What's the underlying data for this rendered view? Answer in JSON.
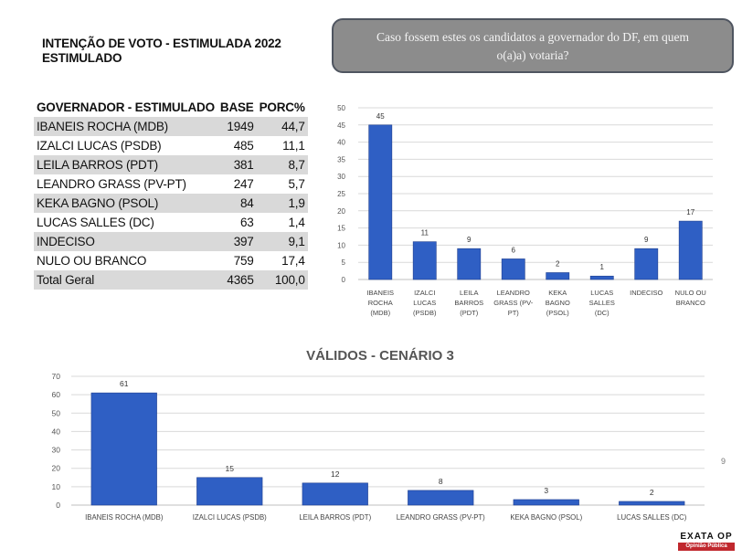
{
  "header": {
    "title_line1": "INTENÇÃO DE VOTO - ESTIMULADA 2022",
    "title_line2": "ESTIMULADO",
    "question_line1": "Caso fossem estes os candidatos a governador do DF, em quem",
    "question_line2": "o(a)a) votaria?"
  },
  "table": {
    "headers": [
      "GOVERNADOR - ESTIMULADO",
      "BASE",
      "PORC%"
    ],
    "rows": [
      [
        "IBANEIS ROCHA (MDB)",
        "1949",
        "44,7"
      ],
      [
        "IZALCI LUCAS (PSDB)",
        "485",
        "11,1"
      ],
      [
        "LEILA BARROS (PDT)",
        "381",
        "8,7"
      ],
      [
        "LEANDRO GRASS (PV-PT)",
        "247",
        "5,7"
      ],
      [
        "KEKA BAGNO (PSOL)",
        "84",
        "1,9"
      ],
      [
        "LUCAS SALLES (DC)",
        "63",
        "1,4"
      ],
      [
        "INDECISO",
        "397",
        "9,1"
      ],
      [
        "NULO OU BRANCO",
        "759",
        "17,4"
      ],
      [
        "Total Geral",
        "4365",
        "100,0"
      ]
    ]
  },
  "chart_data": [
    {
      "type": "bar",
      "title": "",
      "xlabel": "",
      "ylabel": "",
      "categories": [
        [
          "IBANEIS",
          "ROCHA",
          "(MDB)"
        ],
        [
          "IZALCI",
          "LUCAS",
          "(PSDB)"
        ],
        [
          "LEILA",
          "BARROS",
          "(PDT)"
        ],
        [
          "LEANDRO",
          "GRASS (PV-",
          "PT)"
        ],
        [
          "KEKA",
          "BAGNO",
          "(PSOL)"
        ],
        [
          "LUCAS",
          "SALLES",
          "(DC)"
        ],
        [
          "INDECISO"
        ],
        [
          "NULO OU",
          "BRANCO"
        ]
      ],
      "values": [
        45,
        11,
        9,
        6,
        2,
        1,
        9,
        17
      ],
      "ylim": [
        0,
        50
      ],
      "yticks": [
        0,
        5,
        10,
        15,
        20,
        25,
        30,
        35,
        40,
        45,
        50
      ],
      "grid": true,
      "legend": "none",
      "bar_color": "#2f5fc4"
    },
    {
      "type": "bar",
      "title": "VÁLIDOS - CENÁRIO 3",
      "xlabel": "",
      "ylabel": "",
      "categories": [
        [
          "IBANEIS ROCHA (MDB)"
        ],
        [
          "IZALCI LUCAS (PSDB)"
        ],
        [
          "LEILA BARROS (PDT)"
        ],
        [
          "LEANDRO GRASS (PV-PT)"
        ],
        [
          "KEKA BAGNO (PSOL)"
        ],
        [
          "LUCAS SALLES (DC)"
        ]
      ],
      "values": [
        61,
        15,
        12,
        8,
        3,
        2
      ],
      "ylim": [
        0,
        70
      ],
      "yticks": [
        0,
        10,
        20,
        30,
        40,
        50,
        60,
        70
      ],
      "grid": true,
      "legend": "none",
      "bar_color": "#2f5fc4"
    }
  ],
  "footnote": "9",
  "logo": {
    "top_text": "EXATA OP",
    "bottom_text": "Opinião Pública"
  }
}
